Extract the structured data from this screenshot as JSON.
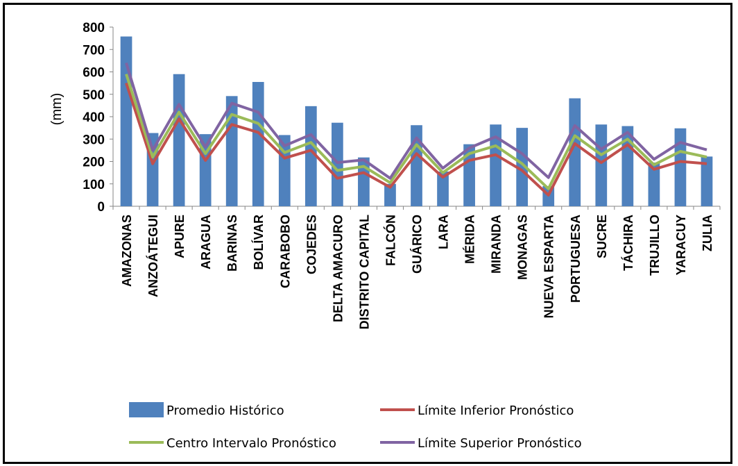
{
  "chart_data": {
    "type": "bar",
    "ylabel": "(mm)",
    "xlabel": "",
    "ylim": [
      0,
      800
    ],
    "yticks": [
      0,
      100,
      200,
      300,
      400,
      500,
      600,
      700,
      800
    ],
    "grid": false,
    "legend_position": "bottom",
    "categories": [
      "AMAZONAS",
      "ANZOÁTEGUI",
      "APURE",
      "ARAGUA",
      "BARINAS",
      "BOLÍVAR",
      "CARABOBO",
      "COJEDES",
      "DELTA AMACURO",
      "DISTRITO CAPITAL",
      "FALCÓN",
      "GUÁRICO",
      "LARA",
      "MÉRIDA",
      "MIRANDA",
      "MONAGAS",
      "NUEVA ESPARTA",
      "PORTUGUESA",
      "SUCRE",
      "TÁCHIRA",
      "TRUJILLO",
      "YARACUY",
      "ZULIA"
    ],
    "series": [
      {
        "name": "Promedio Histórico",
        "kind": "bar",
        "color": "#4f81bd",
        "values": [
          758,
          327,
          590,
          322,
          492,
          555,
          318,
          447,
          373,
          218,
          100,
          362,
          155,
          277,
          365,
          350,
          90,
          482,
          365,
          358,
          195,
          348,
          222
        ]
      },
      {
        "name": "Límite Inferior Pronóstico",
        "kind": "line",
        "color": "#c0504d",
        "values": [
          550,
          190,
          390,
          205,
          365,
          330,
          215,
          250,
          125,
          150,
          85,
          235,
          130,
          205,
          230,
          160,
          50,
          280,
          195,
          275,
          165,
          200,
          190
        ]
      },
      {
        "name": "Centro Intervalo Pronóstico",
        "kind": "line",
        "color": "#9bbb59",
        "values": [
          590,
          220,
          420,
          235,
          410,
          370,
          240,
          285,
          160,
          178,
          105,
          275,
          150,
          235,
          270,
          190,
          78,
          315,
          230,
          300,
          185,
          245,
          220
        ]
      },
      {
        "name": "Límite Superior Pronóstico",
        "kind": "line",
        "color": "#8064a2",
        "values": [
          640,
          250,
          455,
          265,
          460,
          420,
          270,
          320,
          195,
          207,
          125,
          305,
          170,
          260,
          310,
          235,
          128,
          360,
          255,
          330,
          210,
          285,
          252
        ]
      }
    ]
  }
}
